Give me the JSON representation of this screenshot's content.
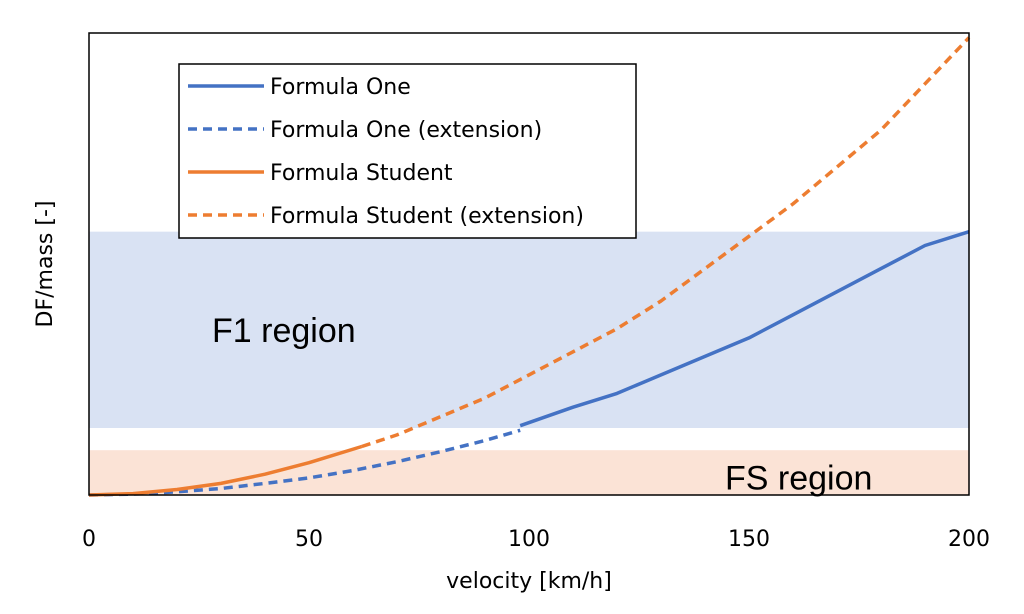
{
  "chart_data": {
    "type": "line",
    "xlabel": "velocity [km/h]",
    "ylabel": "DF/mass [-]",
    "xlim": [
      0,
      200
    ],
    "ylim": [
      0,
      1
    ],
    "xticks": [
      0,
      50,
      100,
      150,
      200
    ],
    "xtick_labels": [
      "0",
      "50",
      "100",
      "150",
      "200"
    ],
    "grid": false,
    "legend_position": "top-left",
    "series": [
      {
        "name": "Formula One",
        "color": "#4472C4",
        "style": "solid",
        "x": [
          98,
          110,
          120,
          130,
          140,
          150,
          160,
          170,
          180,
          190,
          200
        ],
        "y": [
          0.15,
          0.19,
          0.22,
          0.26,
          0.3,
          0.34,
          0.39,
          0.44,
          0.49,
          0.54,
          0.57
        ]
      },
      {
        "name": "Formula One (extension)",
        "color": "#4472C4",
        "style": "dashed",
        "x": [
          0,
          10,
          20,
          30,
          40,
          50,
          60,
          70,
          80,
          90,
          98
        ],
        "y": [
          0,
          0.002,
          0.007,
          0.014,
          0.025,
          0.037,
          0.053,
          0.072,
          0.094,
          0.118,
          0.14
        ]
      },
      {
        "name": "Formula Student",
        "color": "#ED7D31",
        "style": "solid",
        "x": [
          0,
          10,
          20,
          30,
          40,
          50,
          62
        ],
        "y": [
          0,
          0.003,
          0.012,
          0.025,
          0.045,
          0.07,
          0.105
        ]
      },
      {
        "name": "Formula Student (extension)",
        "color": "#ED7D31",
        "style": "dashed",
        "x": [
          62,
          70,
          80,
          90,
          100,
          110,
          120,
          130,
          140,
          150,
          160,
          170,
          180,
          190,
          200
        ],
        "y": [
          0.105,
          0.13,
          0.17,
          0.21,
          0.26,
          0.31,
          0.36,
          0.42,
          0.49,
          0.56,
          0.63,
          0.71,
          0.79,
          0.89,
          0.99
        ]
      }
    ],
    "regions": [
      {
        "label": "F1 region",
        "y0": 0.145,
        "y1": 0.57,
        "color": "#D9E2F3"
      },
      {
        "label": "FS region",
        "y0": 0,
        "y1": 0.097,
        "color": "#FBE3D6"
      }
    ]
  }
}
